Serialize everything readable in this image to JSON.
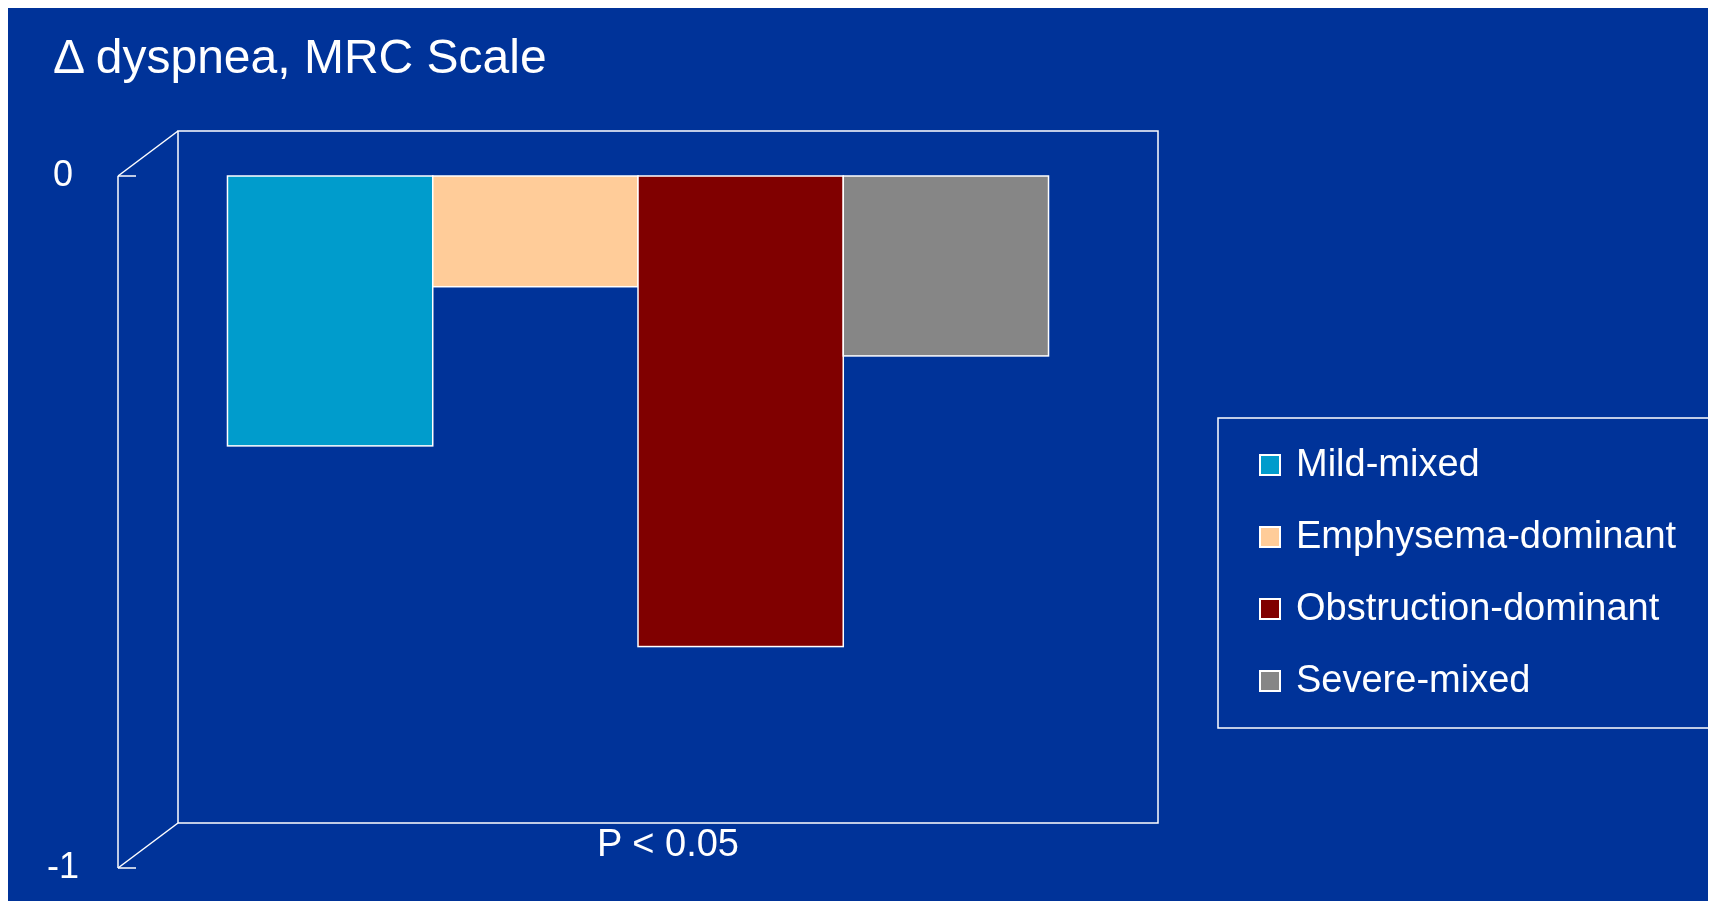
{
  "chart_data": {
    "type": "bar",
    "title": "Δ dyspnea, MRC Scale",
    "categories": [
      null
    ],
    "series": [
      {
        "name": "Mild-mixed",
        "color": "#009ccc",
        "values": [
          -0.39
        ]
      },
      {
        "name": "Emphysema-dominant",
        "color": "#ffcc99",
        "values": [
          -0.16
        ]
      },
      {
        "name": "Obstruction-dominant",
        "color": "#800000",
        "values": [
          -0.68
        ]
      },
      {
        "name": "Severe-mixed",
        "color": "#868686",
        "values": [
          -0.26
        ]
      }
    ],
    "ylim": [
      -1,
      0
    ],
    "yticks": [
      0,
      -1
    ],
    "grid": false,
    "legend": "right",
    "annotations": [
      "P < 0.05"
    ]
  }
}
